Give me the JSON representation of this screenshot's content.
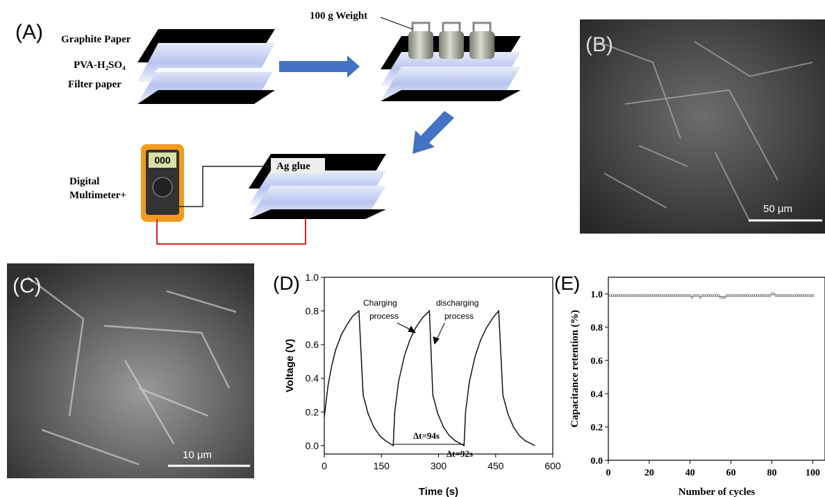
{
  "panel_a": {
    "label": "(A)",
    "graphite": "Graphite Paper",
    "pva": "PVA-H₂SO₄",
    "filter": "Filter paper",
    "weight": "100 g Weight",
    "display": "000",
    "glue": "Ag glue",
    "meter": [
      "Digital",
      "Multimeter+"
    ]
  },
  "panel_b": {
    "label": "(B)",
    "scale": "50 μm"
  },
  "panel_c": {
    "label": "(C)",
    "scale": "10 μm"
  },
  "chart_data": [
    {
      "type": "line",
      "label": "(D)",
      "x_label": "Time (s)",
      "y_label": "Voltage (V)",
      "x": [
        0,
        10,
        20,
        30,
        45,
        60,
        75,
        91,
        102,
        115,
        130,
        145,
        160,
        181,
        185,
        195,
        210,
        225,
        240,
        258,
        276,
        285,
        298,
        313,
        328,
        343,
        367,
        371,
        381,
        396,
        411,
        426,
        443,
        458,
        469,
        482,
        497,
        512,
        527,
        553
      ],
      "series": [
        {
          "color": "#111111",
          "values": [
            0.17,
            0.36,
            0.48,
            0.57,
            0.66,
            0.72,
            0.77,
            0.8,
            0.3,
            0.19,
            0.11,
            0.06,
            0.03,
            0.0,
            0.2,
            0.38,
            0.53,
            0.63,
            0.7,
            0.76,
            0.8,
            0.3,
            0.19,
            0.11,
            0.06,
            0.03,
            0.0,
            0.2,
            0.38,
            0.53,
            0.63,
            0.7,
            0.76,
            0.8,
            0.3,
            0.19,
            0.11,
            0.06,
            0.03,
            0.0
          ]
        }
      ],
      "xlim": [
        0,
        600
      ],
      "xticks": [
        0,
        150,
        300,
        450,
        600
      ],
      "ylim": [
        -0.05,
        1.0
      ],
      "yticks": [
        {
          "value": 0,
          "label": "0.0"
        },
        {
          "value": 0.2,
          "label": "0.2"
        },
        {
          "value": 0.4,
          "label": "0.4"
        },
        {
          "value": 0.6,
          "label": "0.6"
        },
        {
          "value": 0.8,
          "label": "0.8"
        },
        {
          "value": 1,
          "label": "1.0"
        }
      ],
      "annotations": [
        "Charging",
        "process",
        "discharging",
        "process",
        "Δt=94s",
        "Δt=92s"
      ]
    },
    {
      "type": "scatter",
      "label": "(E)",
      "x_label": "Number of cycles",
      "y_label": "Capacitance retention (%)",
      "x": [
        1,
        2,
        3,
        4,
        5,
        6,
        7,
        8,
        9,
        10,
        11,
        12,
        13,
        14,
        15,
        16,
        17,
        18,
        19,
        20,
        21,
        22,
        23,
        24,
        25,
        26,
        27,
        28,
        29,
        30,
        31,
        32,
        33,
        34,
        35,
        36,
        37,
        38,
        39,
        40,
        41,
        42,
        43,
        44,
        45,
        46,
        47,
        48,
        49,
        50,
        51,
        52,
        53,
        54,
        55,
        56,
        57,
        58,
        59,
        60,
        61,
        62,
        63,
        64,
        65,
        66,
        67,
        68,
        69,
        70,
        71,
        72,
        73,
        74,
        75,
        76,
        77,
        78,
        79,
        80,
        81,
        82,
        83,
        84,
        85,
        86,
        87,
        88,
        89,
        90,
        91,
        92,
        93,
        94,
        95,
        96,
        97,
        98,
        99,
        100
      ],
      "series": [
        {
          "color": "#666666",
          "values": [
            0.99,
            0.99,
            0.99,
            0.99,
            0.99,
            0.99,
            0.99,
            0.99,
            0.99,
            0.99,
            0.99,
            0.99,
            0.99,
            0.99,
            0.99,
            0.99,
            0.99,
            0.99,
            0.99,
            0.99,
            0.99,
            0.99,
            0.99,
            0.99,
            0.99,
            0.99,
            0.99,
            0.99,
            0.99,
            0.99,
            0.99,
            0.99,
            0.99,
            0.99,
            0.99,
            0.99,
            0.99,
            0.99,
            0.99,
            0.99,
            0.98,
            0.99,
            0.99,
            0.99,
            0.98,
            0.99,
            0.99,
            0.99,
            0.99,
            0.99,
            0.99,
            0.99,
            0.99,
            0.99,
            0.98,
            0.98,
            0.98,
            0.99,
            0.99,
            0.99,
            0.99,
            0.99,
            0.99,
            0.99,
            0.99,
            0.99,
            0.99,
            0.99,
            0.99,
            0.99,
            0.99,
            0.99,
            0.99,
            0.99,
            0.99,
            0.99,
            0.99,
            0.99,
            0.99,
            1.0,
            1.0,
            0.99,
            0.99,
            0.99,
            0.99,
            0.99,
            0.99,
            0.99,
            0.99,
            0.99,
            0.99,
            0.99,
            0.99,
            0.99,
            0.99,
            0.99,
            0.99,
            0.99,
            0.99,
            0.99
          ]
        }
      ],
      "xlim": [
        0,
        106
      ],
      "xticks": [
        0,
        20,
        40,
        60,
        80,
        100
      ],
      "ylim": [
        0,
        1.1
      ],
      "yticks": [
        {
          "value": 0,
          "label": "0.0"
        },
        {
          "value": 0.2,
          "label": "0.2"
        },
        {
          "value": 0.4,
          "label": "0.4"
        },
        {
          "value": 0.6,
          "label": "0.6"
        },
        {
          "value": 0.8,
          "label": "0.8"
        },
        {
          "value": 1,
          "label": "1.0"
        }
      ]
    }
  ]
}
